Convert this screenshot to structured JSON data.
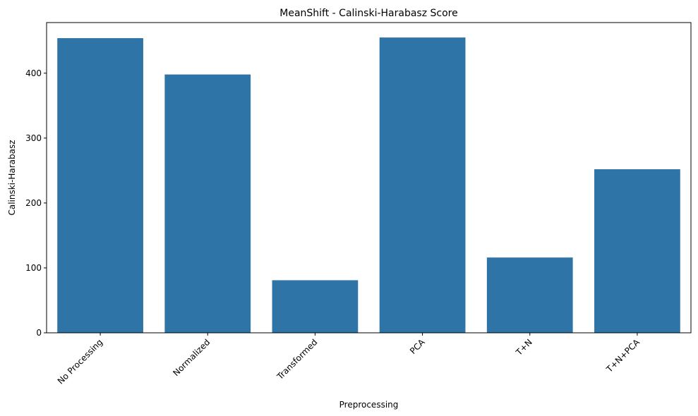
{
  "chart_data": {
    "type": "bar",
    "title": "MeanShift - Calinski-Harabasz Score",
    "xlabel": "Preprocessing",
    "ylabel": "Calinski-Harabasz",
    "categories": [
      "No Processing",
      "Normalized",
      "Transformed",
      "PCA",
      "T+N",
      "T+N+PCA"
    ],
    "values": [
      454,
      398,
      81,
      455,
      116,
      252
    ],
    "ylim": [
      0,
      478
    ],
    "yticks": [
      0,
      100,
      200,
      300,
      400
    ],
    "grid": false,
    "bar_color": "#2e74a6"
  }
}
